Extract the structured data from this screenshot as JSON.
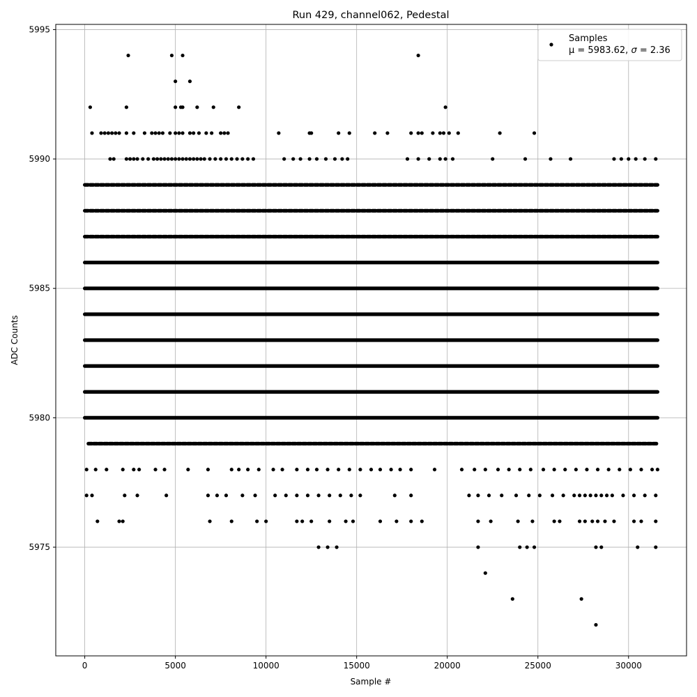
{
  "chart_data": {
    "type": "scatter",
    "title": "Run 429, channel062, Pedestal",
    "xlabel": "Sample #",
    "ylabel": "ADC Counts",
    "xlim": [
      -1600,
      33200
    ],
    "ylim": [
      5970.8,
      5995.2
    ],
    "xticks": [
      0,
      5000,
      10000,
      15000,
      20000,
      25000,
      30000
    ],
    "yticks": [
      5975,
      5980,
      5985,
      5990,
      5995
    ],
    "grid": true,
    "legend": {
      "placement": "top-right",
      "label": "Samples",
      "stats_prefix": "μ = 5983.62, ",
      "stats_sigma": "σ",
      "stats_suffix": " = 2.36"
    },
    "series": [
      {
        "marker_color": "#000000",
        "dense_levels": [
          {
            "y": 5980,
            "x_range": [
              0,
              31600
            ]
          },
          {
            "y": 5981,
            "x_range": [
              0,
              31600
            ]
          },
          {
            "y": 5982,
            "x_range": [
              0,
              31600
            ]
          },
          {
            "y": 5983,
            "x_range": [
              0,
              31600
            ]
          },
          {
            "y": 5984,
            "x_range": [
              0,
              31600
            ]
          },
          {
            "y": 5985,
            "x_range": [
              0,
              31600
            ]
          },
          {
            "y": 5986,
            "x_range": [
              0,
              31600
            ]
          },
          {
            "y": 5987,
            "x_range": [
              0,
              31600
            ]
          },
          {
            "y": 5988,
            "x_range": [
              0,
              31600
            ]
          },
          {
            "y": 5989,
            "x_range": [
              0,
              31600
            ]
          },
          {
            "y": 5979,
            "x_range": [
              200,
              31600
            ]
          }
        ],
        "sparse_levels": [
          {
            "y": 5990,
            "x": [
              1400,
              1600,
              2300,
              2500,
              2700,
              2900,
              3200,
              3500,
              3800,
              4000,
              4200,
              4400,
              4600,
              4800,
              5000,
              5200,
              5400,
              5600,
              5800,
              6000,
              6200,
              6400,
              6600,
              6900,
              7200,
              7500,
              7800,
              8100,
              8400,
              8700,
              9000,
              9300,
              11000,
              11500,
              11900,
              12400,
              12800,
              13300,
              13800,
              14200,
              14500,
              17800,
              18400,
              19000,
              19600,
              19900,
              20300,
              22500,
              24300,
              25700,
              26800,
              29200,
              29600,
              30000,
              30400,
              30900,
              31500
            ]
          },
          {
            "y": 5991,
            "x": [
              400,
              900,
              1100,
              1300,
              1500,
              1700,
              1900,
              2300,
              2700,
              3300,
              3700,
              3900,
              4100,
              4300,
              4700,
              5000,
              5200,
              5400,
              5800,
              6000,
              6300,
              6700,
              7000,
              7500,
              7700,
              7900,
              10700,
              12400,
              12500,
              14000,
              14600,
              16000,
              16700,
              18000,
              18400,
              18600,
              19200,
              19600,
              19800,
              20100,
              20600,
              22900,
              24800
            ]
          },
          {
            "y": 5992,
            "x": [
              300,
              2300,
              5000,
              5300,
              5400,
              6200,
              7100,
              8500,
              19900
            ]
          },
          {
            "y": 5993,
            "x": [
              5000,
              5800
            ]
          },
          {
            "y": 5994,
            "x": [
              2400,
              4800,
              5400,
              18400
            ]
          },
          {
            "y": 5978,
            "x": [
              100,
              600,
              1200,
              2100,
              2700,
              3000,
              3900,
              4400,
              5700,
              6800,
              8100,
              8500,
              9000,
              9600,
              10400,
              10900,
              11700,
              12300,
              12800,
              13400,
              14000,
              14600,
              15200,
              15800,
              16300,
              16900,
              17400,
              18000,
              19300,
              20800,
              21500,
              22100,
              22800,
              23400,
              24000,
              24600,
              25300,
              25900,
              26500,
              27100,
              27700,
              28300,
              28900,
              29500,
              30100,
              30700,
              31300,
              31600
            ]
          },
          {
            "y": 5977,
            "x": [
              100,
              400,
              2200,
              2900,
              4500,
              6800,
              7300,
              7800,
              8700,
              9400,
              10500,
              11100,
              11700,
              12300,
              12900,
              13500,
              14100,
              14700,
              15200,
              17100,
              18000,
              21200,
              21700,
              22300,
              23000,
              23800,
              24500,
              25100,
              25800,
              26400,
              27000,
              27300,
              27600,
              27900,
              28200,
              28500,
              28800,
              29100,
              29700,
              30300,
              30900,
              31500
            ]
          },
          {
            "y": 5976,
            "x": [
              700,
              1900,
              2100,
              6900,
              8100,
              9500,
              10000,
              11700,
              12000,
              12500,
              13500,
              14400,
              14800,
              16300,
              17200,
              18000,
              18600,
              21700,
              22400,
              23900,
              24700,
              25900,
              26200,
              27300,
              27600,
              28000,
              28300,
              28700,
              29200,
              30300,
              30700,
              31500
            ]
          },
          {
            "y": 5975,
            "x": [
              12900,
              13400,
              13900,
              21700,
              24000,
              24400,
              24800,
              28200,
              28500,
              30500,
              31500
            ]
          },
          {
            "y": 5974,
            "x": [
              22100
            ]
          },
          {
            "y": 5973,
            "x": [
              23600,
              27400
            ]
          },
          {
            "y": 5972,
            "x": [
              28200
            ]
          }
        ]
      }
    ]
  }
}
